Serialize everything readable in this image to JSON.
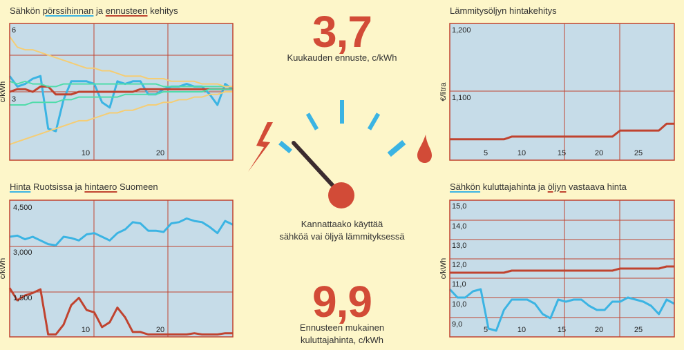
{
  "colors": {
    "plot_bg": "#c6dce8",
    "grid": "#c0432f",
    "blue": "#3bb4e3",
    "red": "#c0432f",
    "yellow": "#f5cd74",
    "green": "#4fdcaa",
    "accent": "#d24b37",
    "page_bg": "#fdf6c9"
  },
  "center": {
    "forecast_value": "3,7",
    "forecast_label": "Kuukauden ennuste, c/kWh",
    "question_line1": "Kannattaako käyttää",
    "question_line2": "sähköä vai öljyä lämmityksessä",
    "consumer_value": "9,9",
    "consumer_label_line1": "Ennusteen mukainen",
    "consumer_label_line2": "kuluttajahinta, c/kWh",
    "icons": [
      "lightning-icon",
      "oil-drop-icon"
    ],
    "gauge_needle_position": "left of center"
  },
  "panels": {
    "p1": {
      "title_parts": [
        "Sähkön ",
        "pörssihinnan",
        " ja ",
        "ennusteen",
        " kehitys"
      ],
      "ylabel": "c/kWh",
      "ytick_labels": [
        "6",
        "3"
      ],
      "xtick_labels": [
        "10",
        "20"
      ]
    },
    "p2": {
      "title_parts": [
        "Lämmitysöljyn hintakehitys"
      ],
      "ylabel": "€/litra",
      "ytick_labels": [
        "1,200",
        "1,100"
      ],
      "xtick_labels": [
        "5",
        "10",
        "15",
        "20",
        "25"
      ]
    },
    "p3": {
      "title_parts": [
        "Hinta",
        " Ruotsissa ja ",
        "hintaero",
        " Suomeen"
      ],
      "ylabel": "c/kWh",
      "ytick_labels": [
        "4,500",
        "3,000",
        "1,500"
      ],
      "xtick_labels": [
        "10",
        "20"
      ]
    },
    "p4": {
      "title_parts": [
        "Sähkön",
        " kuluttajahinta ja ",
        "öljyn",
        " vastaava hinta"
      ],
      "ylabel": "c/kWh",
      "ytick_labels": [
        "15,0",
        "14,0",
        "13,0",
        "12,0",
        "11,0",
        "10,0",
        "9,0"
      ],
      "xtick_labels": [
        "5",
        "10",
        "15",
        "20",
        "25"
      ]
    }
  },
  "chart_data": [
    {
      "type": "line",
      "title": "Sähkön pörssihinnan ja ennusteen kehitys",
      "ylabel": "c/kWh",
      "ylim": [
        1.8,
        7.0
      ],
      "x": [
        1,
        2,
        3,
        4,
        5,
        6,
        7,
        8,
        9,
        10,
        11,
        12,
        13,
        14,
        15,
        16,
        17,
        18,
        19,
        20,
        21,
        22,
        23,
        24,
        25,
        26,
        27,
        28,
        29,
        30
      ],
      "xlim": [
        1,
        30
      ],
      "series": [
        {
          "name": "pörssihinta",
          "color": "blue",
          "values": [
            5.0,
            4.6,
            4.7,
            4.9,
            5.0,
            3.0,
            2.9,
            4.1,
            4.8,
            4.8,
            4.8,
            4.7,
            4.0,
            3.8,
            4.8,
            4.7,
            4.8,
            4.8,
            4.3,
            4.3,
            4.5,
            4.6,
            4.6,
            4.7,
            4.6,
            4.6,
            4.3,
            3.9,
            4.7,
            4.5
          ]
        },
        {
          "name": "ennuste",
          "color": "red",
          "values": [
            4.4,
            4.5,
            4.5,
            4.4,
            4.6,
            4.6,
            4.3,
            4.3,
            4.3,
            4.4,
            4.4,
            4.4,
            4.4,
            4.4,
            4.4,
            4.4,
            4.4,
            4.5,
            4.5,
            4.5,
            4.5,
            4.5,
            4.5,
            4.5,
            4.5,
            4.5,
            4.5,
            4.5,
            4.5,
            4.5
          ]
        },
        {
          "name": "",
          "color": "green",
          "values": [
            4.8,
            4.7,
            4.8,
            4.7,
            4.7,
            4.6,
            4.6,
            4.7,
            4.7,
            4.7,
            4.7,
            4.7,
            4.7,
            4.7,
            4.7,
            4.7,
            4.7,
            4.7,
            4.7,
            4.7,
            4.6,
            4.6,
            4.6,
            4.6,
            4.6,
            4.6,
            4.6,
            4.6,
            4.6,
            4.6
          ]
        },
        {
          "name": "",
          "color": "green",
          "values": [
            3.9,
            3.9,
            3.9,
            4.0,
            4.0,
            4.0,
            4.0,
            4.1,
            4.1,
            4.2,
            4.2,
            4.2,
            4.2,
            4.2,
            4.2,
            4.3,
            4.3,
            4.3,
            4.3,
            4.3,
            4.4,
            4.4,
            4.4,
            4.4,
            4.4,
            4.4,
            4.5,
            4.5,
            4.5,
            4.5
          ]
        },
        {
          "name": "",
          "color": "yellow",
          "values": [
            6.5,
            6.1,
            6.0,
            6.0,
            5.9,
            5.8,
            5.7,
            5.6,
            5.5,
            5.4,
            5.3,
            5.3,
            5.2,
            5.2,
            5.1,
            5.0,
            5.0,
            5.0,
            4.9,
            4.9,
            4.9,
            4.8,
            4.8,
            4.8,
            4.8,
            4.7,
            4.7,
            4.7,
            4.6,
            4.6
          ]
        },
        {
          "name": "",
          "color": "yellow",
          "values": [
            2.4,
            2.5,
            2.6,
            2.7,
            2.8,
            2.9,
            3.0,
            3.1,
            3.2,
            3.3,
            3.3,
            3.4,
            3.5,
            3.6,
            3.6,
            3.7,
            3.7,
            3.8,
            3.9,
            3.9,
            4.0,
            4.0,
            4.1,
            4.1,
            4.2,
            4.2,
            4.3,
            4.3,
            4.4,
            4.4
          ]
        }
      ]
    },
    {
      "type": "line",
      "title": "Lämmitysöljyn hintakehitys",
      "ylabel": "€/litra",
      "ylim": [
        1.017,
        1.22
      ],
      "x": [
        1,
        2,
        3,
        4,
        5,
        6,
        7,
        8,
        9,
        10,
        11,
        12,
        13,
        14,
        15,
        16,
        17,
        18,
        19,
        20,
        21,
        22,
        23,
        24,
        25,
        26,
        27,
        28,
        29,
        30
      ],
      "xlim": [
        1,
        30
      ],
      "series": [
        {
          "name": "",
          "color": "red",
          "values": [
            1.048,
            1.048,
            1.048,
            1.048,
            1.048,
            1.048,
            1.048,
            1.048,
            1.052,
            1.052,
            1.052,
            1.052,
            1.052,
            1.052,
            1.052,
            1.052,
            1.052,
            1.052,
            1.052,
            1.052,
            1.052,
            1.052,
            1.061,
            1.061,
            1.061,
            1.061,
            1.061,
            1.061,
            1.071,
            1.071
          ]
        }
      ]
    },
    {
      "type": "line",
      "title": "Hinta Ruotsissa ja hintaero Suomeen",
      "ylabel": "c/kWh",
      "ylim": [
        -600,
        5000
      ],
      "x": [
        1,
        2,
        3,
        4,
        5,
        6,
        7,
        8,
        9,
        10,
        11,
        12,
        13,
        14,
        15,
        16,
        17,
        18,
        19,
        20,
        21,
        22,
        23,
        24,
        25,
        26,
        27,
        28,
        29,
        30
      ],
      "xlim": [
        1,
        30
      ],
      "series": [
        {
          "name": "Hinta",
          "color": "blue",
          "values": [
            3500,
            3550,
            3400,
            3500,
            3350,
            3200,
            3150,
            3500,
            3450,
            3350,
            3600,
            3650,
            3500,
            3350,
            3650,
            3800,
            4100,
            4050,
            3750,
            3750,
            3700,
            4050,
            4100,
            4250,
            4150,
            4100,
            3900,
            3650,
            4150,
            4000
          ]
        },
        {
          "name": "hintaero",
          "color": "red",
          "values": [
            1400,
            900,
            1100,
            1200,
            1350,
            -500,
            -500,
            -100,
            700,
            1000,
            500,
            400,
            -200,
            0,
            600,
            200,
            -400,
            -400,
            -500,
            -500,
            -500,
            -500,
            -500,
            -500,
            -450,
            -500,
            -500,
            -500,
            -450,
            -450
          ]
        }
      ]
    },
    {
      "type": "line",
      "title": "Sähkön kuluttajahinta ja öljyn vastaava hinta",
      "ylabel": "c/kWh",
      "ylim": [
        8.7,
        15.3
      ],
      "x": [
        1,
        2,
        3,
        4,
        5,
        6,
        7,
        8,
        9,
        10,
        11,
        12,
        13,
        14,
        15,
        16,
        17,
        18,
        19,
        20,
        21,
        22,
        23,
        24,
        25,
        26,
        27,
        28,
        29,
        30
      ],
      "xlim": [
        1,
        30
      ],
      "series": [
        {
          "name": "Sähkön kuluttajahinta",
          "color": "blue",
          "values": [
            11.0,
            10.6,
            10.6,
            10.9,
            11.0,
            9.1,
            9.0,
            10.0,
            10.5,
            10.5,
            10.5,
            10.3,
            9.8,
            9.6,
            10.5,
            10.4,
            10.5,
            10.5,
            10.2,
            10.0,
            10.0,
            10.4,
            10.4,
            10.6,
            10.5,
            10.4,
            10.2,
            9.8,
            10.5,
            10.3
          ]
        },
        {
          "name": "öljyn vastaava hinta",
          "color": "red",
          "values": [
            11.8,
            11.8,
            11.8,
            11.8,
            11.8,
            11.8,
            11.8,
            11.8,
            11.9,
            11.9,
            11.9,
            11.9,
            11.9,
            11.9,
            11.9,
            11.9,
            11.9,
            11.9,
            11.9,
            11.9,
            11.9,
            11.9,
            12.0,
            12.0,
            12.0,
            12.0,
            12.0,
            12.0,
            12.1,
            12.1
          ]
        }
      ]
    }
  ]
}
